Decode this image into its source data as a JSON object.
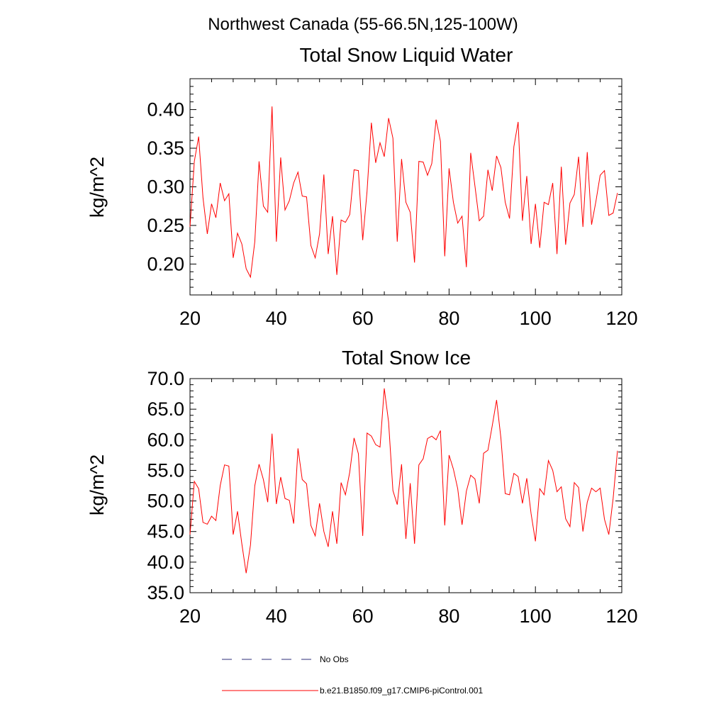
{
  "figure": {
    "suptitle": "Northwest Canada (55-66.5N,125-100W)"
  },
  "chart_data": [
    {
      "type": "line",
      "title": "Total Snow Liquid Water",
      "xlabel": "",
      "ylabel": "kg/m^2",
      "xlim": [
        20,
        120
      ],
      "ylim": [
        0.16,
        0.44
      ],
      "x_ticks": [
        20,
        40,
        60,
        80,
        100,
        120
      ],
      "x_tick_labels": [
        "20",
        "40",
        "60",
        "80",
        "100",
        "120"
      ],
      "y_ticks": [
        0.2,
        0.25,
        0.3,
        0.35,
        0.4
      ],
      "y_tick_labels": [
        "0.20",
        "0.25",
        "0.30",
        "0.35",
        "0.40"
      ],
      "x_minor_step": 5,
      "y_minor_step": 0.01,
      "grid": false,
      "series": [
        {
          "name": "b.e21.B1850.f09_g17.CMIP6-piControl.001",
          "color": "#ff0000",
          "x_start": 20,
          "x_step": 1,
          "values": [
            0.248,
            0.333,
            0.365,
            0.286,
            0.239,
            0.278,
            0.26,
            0.305,
            0.282,
            0.291,
            0.208,
            0.24,
            0.226,
            0.194,
            0.183,
            0.229,
            0.333,
            0.275,
            0.267,
            0.404,
            0.229,
            0.338,
            0.27,
            0.282,
            0.305,
            0.319,
            0.288,
            0.287,
            0.224,
            0.208,
            0.239,
            0.316,
            0.213,
            0.262,
            0.186,
            0.257,
            0.254,
            0.264,
            0.322,
            0.321,
            0.231,
            0.294,
            0.383,
            0.331,
            0.357,
            0.339,
            0.389,
            0.363,
            0.229,
            0.336,
            0.28,
            0.267,
            0.202,
            0.333,
            0.332,
            0.315,
            0.33,
            0.387,
            0.359,
            0.21,
            0.324,
            0.28,
            0.253,
            0.262,
            0.196,
            0.344,
            0.301,
            0.256,
            0.262,
            0.322,
            0.295,
            0.34,
            0.325,
            0.28,
            0.259,
            0.352,
            0.384,
            0.256,
            0.314,
            0.226,
            0.278,
            0.221,
            0.28,
            0.277,
            0.305,
            0.213,
            0.326,
            0.225,
            0.279,
            0.29,
            0.339,
            0.248,
            0.345,
            0.251,
            0.281,
            0.315,
            0.321,
            0.263,
            0.266,
            0.292
          ]
        }
      ]
    },
    {
      "type": "line",
      "title": "Total Snow Ice",
      "xlabel": "",
      "ylabel": "kg/m^2",
      "xlim": [
        20,
        120
      ],
      "ylim": [
        35,
        70
      ],
      "x_ticks": [
        20,
        40,
        60,
        80,
        100,
        120
      ],
      "x_tick_labels": [
        "20",
        "40",
        "60",
        "80",
        "100",
        "120"
      ],
      "y_ticks": [
        35,
        40,
        45,
        50,
        55,
        60,
        65,
        70
      ],
      "y_tick_labels": [
        "35.0",
        "40.0",
        "45.0",
        "50.0",
        "55.0",
        "60.0",
        "65.0",
        "70.0"
      ],
      "x_minor_step": 5,
      "y_minor_step": 1,
      "grid": false,
      "series": [
        {
          "name": "b.e21.B1850.f09_g17.CMIP6-piControl.001",
          "color": "#ff0000",
          "x_start": 20,
          "x_step": 1,
          "values": [
            44.5,
            53.2,
            52.0,
            46.5,
            46.2,
            47.5,
            46.8,
            52.5,
            55.9,
            55.7,
            44.5,
            48.3,
            43.0,
            38.2,
            42.8,
            52.5,
            56.0,
            53.5,
            49.8,
            61.0,
            49.5,
            53.9,
            50.4,
            50.1,
            46.3,
            58.6,
            53.5,
            52.8,
            46.0,
            44.3,
            49.6,
            45.0,
            42.5,
            48.3,
            43.0,
            53.0,
            51.0,
            54.7,
            60.3,
            57.7,
            44.3,
            61.1,
            60.6,
            59.2,
            58.8,
            68.4,
            62.9,
            51.7,
            49.4,
            56.0,
            43.8,
            52.9,
            43.0,
            55.9,
            56.9,
            60.2,
            60.6,
            60.0,
            61.5,
            46.0,
            57.5,
            55.2,
            52.0,
            46.1,
            51.6,
            54.2,
            53.6,
            49.6,
            57.8,
            58.3,
            62.3,
            66.5,
            60.3,
            51.2,
            51.0,
            54.5,
            54.0,
            49.6,
            53.7,
            47.9,
            43.4,
            52.0,
            51.0,
            56.6,
            55.0,
            51.5,
            52.3,
            47.1,
            45.8,
            53.0,
            52.2,
            45.0,
            49.8,
            52.1,
            51.5,
            52.1,
            47.0,
            44.5,
            50.4,
            58.2
          ]
        }
      ]
    }
  ],
  "legend": {
    "entries": [
      {
        "label": "No Obs",
        "style": "dashed",
        "color": "#2b2b7a"
      },
      {
        "label": "b.e21.B1850.f09_g17.CMIP6-piControl.001",
        "style": "solid",
        "color": "#ff0000"
      }
    ]
  }
}
